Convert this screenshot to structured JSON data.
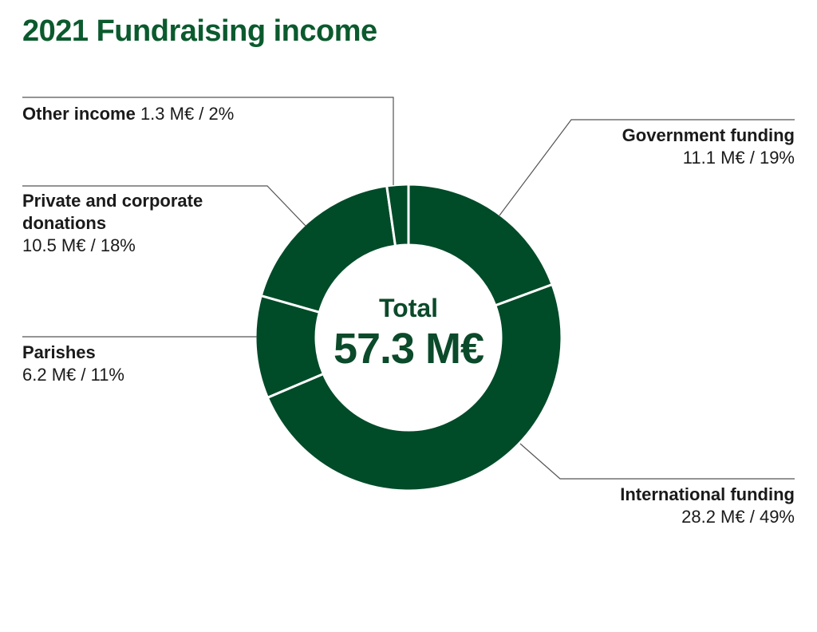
{
  "chart_data": {
    "type": "pie",
    "title": "2021 Fundraising income",
    "center": {
      "label": "Total",
      "value": "57.3 M€"
    },
    "color": "#004b28",
    "separator_color": "#ffffff",
    "slices": [
      {
        "name": "Government funding",
        "value": 11.1,
        "value_text": "11.1 M€ / 19%"
      },
      {
        "name": "International funding",
        "value": 28.2,
        "value_text": "28.2 M€ / 49%"
      },
      {
        "name": "Parishes",
        "value": 6.2,
        "value_text": "6.2 M€ / 11%"
      },
      {
        "name": "Private and corporate donations",
        "value": 10.5,
        "value_text": "10.5 M€ / 18%"
      },
      {
        "name": "Other income",
        "value": 1.3,
        "value_text": "1.3 M€ / 2%"
      }
    ]
  }
}
